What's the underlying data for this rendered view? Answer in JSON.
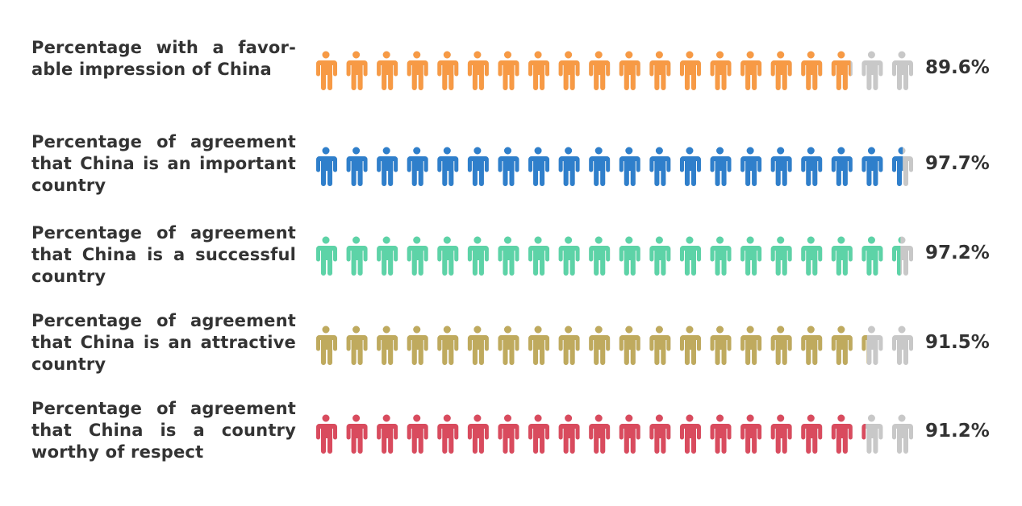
{
  "chart_data": {
    "type": "pictogram",
    "icon": "person-icon",
    "icons_per_row": 20,
    "empty_color": "#C8C8C8",
    "rows": [
      {
        "label": "Percentage with a favor-able impression of China",
        "value": 89.6,
        "display": "89.6%",
        "color": "#F79A45"
      },
      {
        "label": "Percentage of agreement that China is an important country",
        "value": 97.7,
        "display": "97.7%",
        "color": "#2F7FCB"
      },
      {
        "label": "Percentage of agreement that China is a successful country",
        "value": 97.2,
        "display": "97.2%",
        "color": "#5DD3A7"
      },
      {
        "label": "Percentage of agreement that China is an attractive country",
        "value": 91.5,
        "display": "91.5%",
        "color": "#BFAA5E"
      },
      {
        "label": "Percentage of agreement that China is a country worthy of respect",
        "value": 91.2,
        "display": "91.2%",
        "color": "#D94B5E"
      }
    ]
  }
}
